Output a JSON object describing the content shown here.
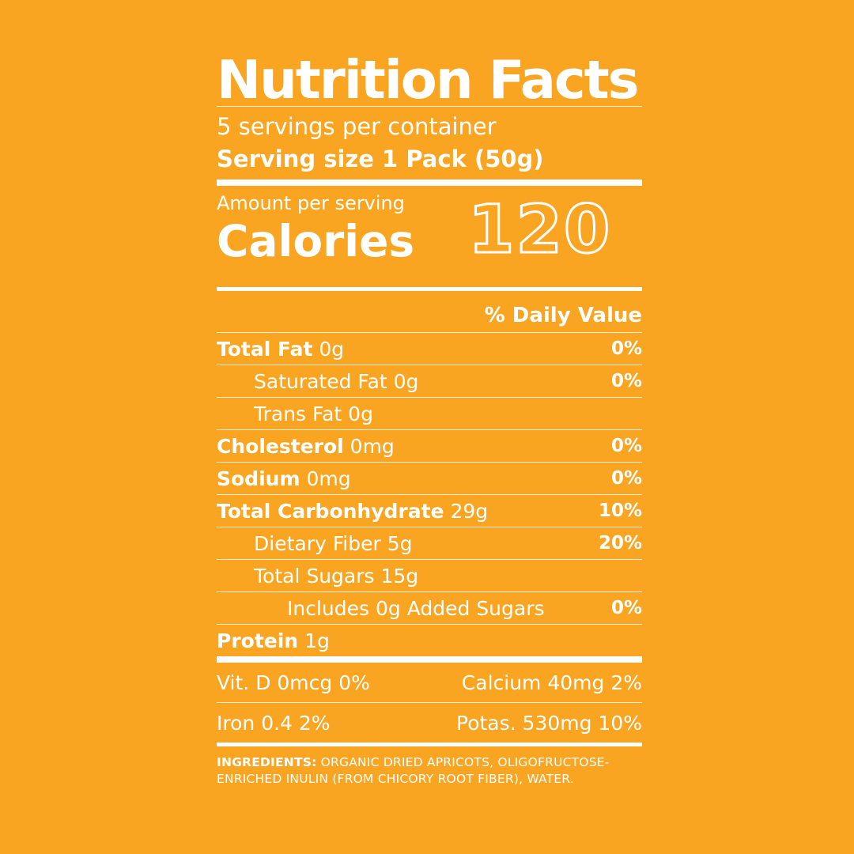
{
  "title": "Nutrition Facts",
  "servings_per_container": "5 servings per container",
  "serving_size": "Serving size 1 Pack (50g)",
  "amount_per_serving": "Amount per serving",
  "calories_label": "Calories",
  "calories_value": "120",
  "daily_value_header": "% Daily Value",
  "nutrients": [
    {
      "name": "Total Fat",
      "amount": "0g",
      "dv": "0%"
    },
    {
      "name": "Saturated Fat",
      "amount": "0g",
      "dv": "0%"
    },
    {
      "name": "Trans Fat",
      "amount": "0g",
      "dv": ""
    },
    {
      "name": "Cholesterol",
      "amount": "0mg",
      "dv": "0%"
    },
    {
      "name": "Sodium",
      "amount": "0mg",
      "dv": "0%"
    },
    {
      "name": "Total Carbonhydrate",
      "amount": "29g",
      "dv": "10%"
    },
    {
      "name": "Dietary Fiber",
      "amount": "5g",
      "dv": "20%"
    },
    {
      "name": "Total Sugars",
      "amount": "15g",
      "dv": ""
    },
    {
      "name": "Includes 0g Added Sugars",
      "amount": "",
      "dv": "0%"
    },
    {
      "name": "Protein",
      "amount": "1g",
      "dv": ""
    }
  ],
  "vitamins": [
    {
      "left": "Vit. D 0mcg 0%",
      "right": "Calcium 40mg 2%"
    },
    {
      "left": "Iron 0.4 2%",
      "right": "Potas. 530mg 10%"
    }
  ],
  "ingredients_label": "INGREDIENTS:",
  "ingredients_text": "ORGANIC DRIED APRICOTS, OLIGOFRUCTOSE-ENRICHED INULIN (FROM CHICORY ROOT FIBER), WATER.",
  "colors": {
    "background": "#F9A522",
    "text": "#FFFFFF"
  }
}
